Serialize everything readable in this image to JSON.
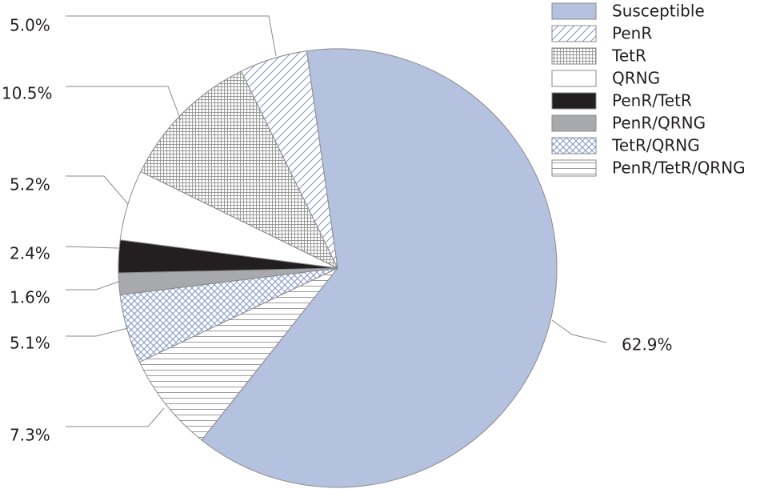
{
  "chart_data": {
    "type": "pie",
    "categories": [
      "Susceptible",
      "PenR",
      "TetR",
      "QRNG",
      "PenR/TetR",
      "PenR/QRNG",
      "TetR/QRNG",
      "PenR/TetR/QRNG"
    ],
    "values": [
      62.9,
      5.0,
      10.5,
      5.2,
      2.4,
      1.6,
      5.1,
      7.3
    ],
    "value_labels": [
      "62.9%",
      "5.0%",
      "10.5%",
      "5.2%",
      "2.4%",
      "1.6%",
      "5.1%",
      "7.3%"
    ],
    "colors": [
      "#b4c2df",
      "#7f97c8",
      "#9a9a9a",
      "#ffffff",
      "#231f20",
      "#a7a9ac",
      "#7f97c8",
      "#9a9a9a"
    ],
    "patterns": [
      "solid",
      "diagonal",
      "grid",
      "solid",
      "solid",
      "solid",
      "crosshatch",
      "horizontal"
    ]
  }
}
